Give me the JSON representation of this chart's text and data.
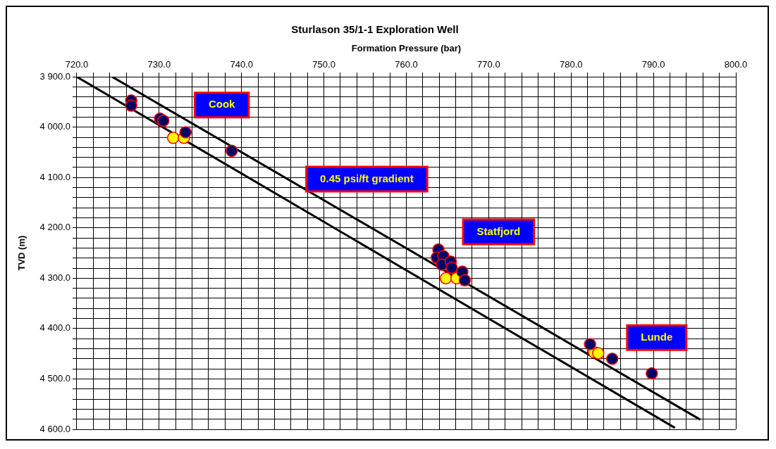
{
  "chart_data": {
    "type": "scatter",
    "title": "Sturlason 35/1-1 Exploration Well",
    "xlabel": "Formation Pressure (bar)",
    "ylabel": "TVD (m)",
    "xlim": [
      720,
      800
    ],
    "xticks": [
      {
        "value": 720,
        "label": "720.0"
      },
      {
        "value": 722,
        "label": null
      },
      {
        "value": 724,
        "label": null
      },
      {
        "value": 726,
        "label": null
      },
      {
        "value": 728,
        "label": null
      },
      {
        "value": 730,
        "label": "730.0"
      },
      {
        "value": 732,
        "label": null
      },
      {
        "value": 734,
        "label": null
      },
      {
        "value": 736,
        "label": null
      },
      {
        "value": 738,
        "label": null
      },
      {
        "value": 740,
        "label": "740.0"
      },
      {
        "value": 742,
        "label": null
      },
      {
        "value": 744,
        "label": null
      },
      {
        "value": 746,
        "label": null
      },
      {
        "value": 748,
        "label": null
      },
      {
        "value": 750,
        "label": "750.0"
      },
      {
        "value": 752,
        "label": null
      },
      {
        "value": 754,
        "label": null
      },
      {
        "value": 756,
        "label": null
      },
      {
        "value": 758,
        "label": null
      },
      {
        "value": 760,
        "label": "760.0"
      },
      {
        "value": 762,
        "label": null
      },
      {
        "value": 764,
        "label": null
      },
      {
        "value": 766,
        "label": null
      },
      {
        "value": 768,
        "label": null
      },
      {
        "value": 770,
        "label": "770.0"
      },
      {
        "value": 772,
        "label": null
      },
      {
        "value": 774,
        "label": null
      },
      {
        "value": 776,
        "label": null
      },
      {
        "value": 778,
        "label": null
      },
      {
        "value": 780,
        "label": "780.0"
      },
      {
        "value": 782,
        "label": null
      },
      {
        "value": 784,
        "label": null
      },
      {
        "value": 786,
        "label": null
      },
      {
        "value": 788,
        "label": null
      },
      {
        "value": 790,
        "label": "790.0"
      },
      {
        "value": 792,
        "label": null
      },
      {
        "value": 794,
        "label": null
      },
      {
        "value": 796,
        "label": null
      },
      {
        "value": 798,
        "label": null
      },
      {
        "value": 800,
        "label": "800.0"
      }
    ],
    "ylim": [
      4600,
      3900
    ],
    "yticks": [
      {
        "value": 3900,
        "label": "3 900.0"
      },
      {
        "value": 3920,
        "label": null
      },
      {
        "value": 3940,
        "label": null
      },
      {
        "value": 3960,
        "label": null
      },
      {
        "value": 3980,
        "label": null
      },
      {
        "value": 4000,
        "label": "4 000.0"
      },
      {
        "value": 4020,
        "label": null
      },
      {
        "value": 4040,
        "label": null
      },
      {
        "value": 4060,
        "label": null
      },
      {
        "value": 4080,
        "label": null
      },
      {
        "value": 4100,
        "label": "4 100.0"
      },
      {
        "value": 4120,
        "label": null
      },
      {
        "value": 4140,
        "label": null
      },
      {
        "value": 4160,
        "label": null
      },
      {
        "value": 4180,
        "label": null
      },
      {
        "value": 4200,
        "label": "4 200.0"
      },
      {
        "value": 4220,
        "label": null
      },
      {
        "value": 4240,
        "label": null
      },
      {
        "value": 4260,
        "label": null
      },
      {
        "value": 4280,
        "label": null
      },
      {
        "value": 4300,
        "label": "4 300.0"
      },
      {
        "value": 4320,
        "label": null
      },
      {
        "value": 4340,
        "label": null
      },
      {
        "value": 4360,
        "label": null
      },
      {
        "value": 4380,
        "label": null
      },
      {
        "value": 4400,
        "label": "4 400.0"
      },
      {
        "value": 4420,
        "label": null
      },
      {
        "value": 4440,
        "label": null
      },
      {
        "value": 4460,
        "label": null
      },
      {
        "value": 4480,
        "label": null
      },
      {
        "value": 4500,
        "label": "4 500.0"
      },
      {
        "value": 4520,
        "label": null
      },
      {
        "value": 4540,
        "label": null
      },
      {
        "value": 4560,
        "label": null
      },
      {
        "value": 4580,
        "label": null
      },
      {
        "value": 4600,
        "label": "4 600.0"
      }
    ],
    "grid": true,
    "legend": false,
    "marker": "circle",
    "series": [
      {
        "type": "line",
        "marker": "none",
        "color": "#000000",
        "x": [
          720,
          792.6
        ],
        "values": [
          3900,
          4597
        ]
      },
      {
        "type": "line",
        "marker": "none",
        "color": "#000000",
        "x": [
          724.3,
          795.7
        ],
        "values": [
          3900,
          4581
        ]
      },
      {
        "color": "#000066",
        "x": [
          726.6,
          726.6,
          730.1,
          730.5,
          733.2,
          738.8,
          763.9,
          763.7,
          764.5,
          764.3,
          765.4,
          765.5,
          766.8,
          767.1,
          782.3,
          785.0,
          789.8
        ],
        "values": [
          3947,
          3957,
          3983,
          3987,
          4010,
          4047,
          4243,
          4259,
          4256,
          4273,
          4267,
          4279,
          4287,
          4304,
          4431,
          4460,
          4489
        ]
      },
      {
        "color": "#ffff00",
        "x": [
          731.7,
          733.0,
          764.8,
          766.1,
          782.8,
          783.3
        ],
        "values": [
          4021,
          4021,
          4300,
          4300,
          4447,
          4449
        ]
      }
    ],
    "annotations": [
      "Cook",
      "0.45 psi/ft gradient",
      "Statfjord",
      "Lunde"
    ]
  }
}
